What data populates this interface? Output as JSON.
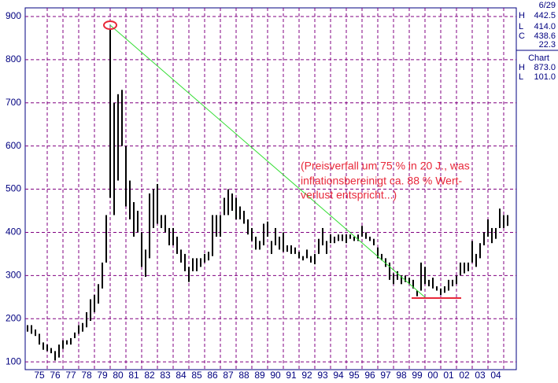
{
  "chart_data": {
    "type": "ohlc",
    "ylim": [
      82,
      920
    ],
    "yticks": [
      100,
      200,
      300,
      400,
      500,
      600,
      700,
      800,
      900
    ],
    "xlim": [
      1974.6,
      2005.8
    ],
    "xticks": [
      {
        "value": 1975,
        "label": "75"
      },
      {
        "value": 1976,
        "label": "76"
      },
      {
        "value": 1977,
        "label": "77"
      },
      {
        "value": 1978,
        "label": "78"
      },
      {
        "value": 1979,
        "label": "79"
      },
      {
        "value": 1980,
        "label": "80"
      },
      {
        "value": 1981,
        "label": "81"
      },
      {
        "value": 1982,
        "label": "82"
      },
      {
        "value": 1983,
        "label": "83"
      },
      {
        "value": 1984,
        "label": "84"
      },
      {
        "value": 1985,
        "label": "85"
      },
      {
        "value": 1986,
        "label": "86"
      },
      {
        "value": 1987,
        "label": "87"
      },
      {
        "value": 1988,
        "label": "88"
      },
      {
        "value": 1989,
        "label": "89"
      },
      {
        "value": 1990,
        "label": "90"
      },
      {
        "value": 1991,
        "label": "91"
      },
      {
        "value": 1992,
        "label": "92"
      },
      {
        "value": 1993,
        "label": "93"
      },
      {
        "value": 1994,
        "label": "94"
      },
      {
        "value": 1995,
        "label": "95"
      },
      {
        "value": 1996,
        "label": "96"
      },
      {
        "value": 1997,
        "label": "97"
      },
      {
        "value": 1998,
        "label": "98"
      },
      {
        "value": 1999,
        "label": "99"
      },
      {
        "value": 2000,
        "label": "00"
      },
      {
        "value": 2001,
        "label": "01"
      },
      {
        "value": 2002,
        "label": "02"
      },
      {
        "value": 2003,
        "label": "03"
      },
      {
        "value": 2004,
        "label": "04"
      }
    ],
    "grid": true,
    "color": "#000000",
    "grid_color": "#800080",
    "x": [
      1974.75,
      1975,
      1975.25,
      1975.5,
      1975.75,
      1976,
      1976.25,
      1976.5,
      1976.75,
      1977,
      1977.25,
      1977.5,
      1977.75,
      1978,
      1978.25,
      1978.5,
      1978.75,
      1979,
      1979.25,
      1979.5,
      1979.75,
      1980,
      1980.25,
      1980.5,
      1980.75,
      1981,
      1981.25,
      1981.5,
      1981.75,
      1982,
      1982.25,
      1982.5,
      1982.75,
      1983,
      1983.25,
      1983.5,
      1983.75,
      1984,
      1984.25,
      1984.5,
      1984.75,
      1985,
      1985.25,
      1985.5,
      1985.75,
      1986,
      1986.25,
      1986.5,
      1986.75,
      1987,
      1987.25,
      1987.5,
      1987.75,
      1988,
      1988.25,
      1988.5,
      1988.75,
      1989,
      1989.25,
      1989.5,
      1989.75,
      1990,
      1990.25,
      1990.5,
      1990.75,
      1991,
      1991.25,
      1991.5,
      1991.75,
      1992,
      1992.25,
      1992.5,
      1992.75,
      1993,
      1993.25,
      1993.5,
      1993.75,
      1994,
      1994.25,
      1994.5,
      1994.75,
      1995,
      1995.25,
      1995.5,
      1995.75,
      1996,
      1996.25,
      1996.5,
      1996.75,
      1997,
      1997.25,
      1997.5,
      1997.75,
      1998,
      1998.25,
      1998.5,
      1998.75,
      1999,
      1999.25,
      1999.5,
      1999.75,
      2000,
      2000.25,
      2000.5,
      2000.75,
      2001,
      2001.25,
      2001.5,
      2001.75,
      2002,
      2002.25,
      2002.5,
      2002.75,
      2003,
      2003.25,
      2003.5,
      2003.75,
      2004,
      2004.25,
      2004.5,
      2004.75,
      2005,
      2005.25
    ],
    "high": [
      185,
      185,
      175,
      165,
      145,
      140,
      132,
      125,
      140,
      150,
      150,
      155,
      168,
      185,
      190,
      215,
      245,
      255,
      280,
      330,
      440,
      873,
      700,
      720,
      730,
      600,
      520,
      470,
      450,
      400,
      360,
      490,
      500,
      512,
      440,
      440,
      410,
      410,
      390,
      360,
      350,
      320,
      340,
      340,
      340,
      350,
      355,
      440,
      440,
      440,
      480,
      500,
      490,
      480,
      460,
      450,
      430,
      410,
      390,
      380,
      420,
      425,
      380,
      410,
      390,
      400,
      370,
      370,
      365,
      355,
      345,
      360,
      345,
      350,
      385,
      410,
      380,
      395,
      390,
      395,
      395,
      395,
      395,
      390,
      395,
      415,
      400,
      390,
      385,
      365,
      350,
      340,
      330,
      305,
      310,
      300,
      300,
      295,
      290,
      265,
      330,
      320,
      290,
      295,
      275,
      270,
      275,
      290,
      290,
      300,
      330,
      330,
      330,
      380,
      350,
      375,
      400,
      430,
      410,
      410,
      455,
      440,
      440
    ],
    "low": [
      170,
      165,
      160,
      140,
      128,
      125,
      120,
      103,
      110,
      130,
      140,
      140,
      155,
      165,
      170,
      180,
      195,
      215,
      235,
      270,
      330,
      480,
      440,
      520,
      600,
      460,
      430,
      390,
      400,
      320,
      297,
      340,
      410,
      420,
      410,
      400,
      370,
      370,
      350,
      330,
      310,
      285,
      310,
      310,
      320,
      330,
      335,
      345,
      390,
      390,
      440,
      440,
      450,
      430,
      430,
      420,
      395,
      380,
      360,
      360,
      370,
      390,
      350,
      370,
      360,
      355,
      355,
      350,
      350,
      340,
      335,
      340,
      330,
      326,
      350,
      370,
      350,
      375,
      375,
      380,
      380,
      375,
      385,
      380,
      380,
      390,
      385,
      380,
      370,
      340,
      335,
      320,
      290,
      280,
      290,
      280,
      285,
      280,
      270,
      252,
      265,
      280,
      275,
      270,
      265,
      255,
      260,
      265,
      275,
      280,
      300,
      305,
      310,
      330,
      320,
      340,
      370,
      390,
      375,
      385,
      410,
      410,
      415
    ],
    "annotation": [
      "(Preisverfall um 75 % in 20 J., was",
      "inflationsbereinigt ca. 88 % Wert-",
      "verlust entspricht...)"
    ]
  },
  "info": {
    "date": "6/29",
    "rows": [
      [
        "H",
        "442.5"
      ],
      [
        "L",
        "414.0"
      ],
      [
        "C",
        "438.6"
      ]
    ],
    "change": "22.3",
    "chart_label": "Chart",
    "chart_rows": [
      [
        "H",
        "873.0"
      ],
      [
        "L",
        "101.0"
      ]
    ]
  }
}
